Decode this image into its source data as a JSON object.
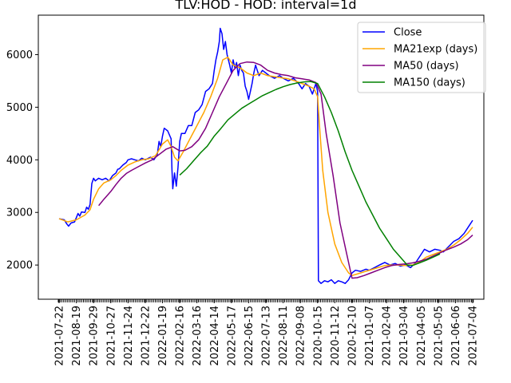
{
  "chart_data": {
    "type": "line",
    "title": "TLV:HOD - HOD: interval=1d",
    "xlabel": "",
    "ylabel": "",
    "ylim": [
      1350,
      6750
    ],
    "y_ticks": [
      2000,
      3000,
      4000,
      5000,
      6000
    ],
    "x_tick_labels": [
      "2021-07-22",
      "2021-08-19",
      "2021-09-29",
      "2021-10-27",
      "2021-11-24",
      "2021-12-22",
      "2022-01-19",
      "2022-02-16",
      "2022-03-16",
      "2022-04-14",
      "2022-05-17",
      "2022-06-15",
      "2022-07-13",
      "2022-08-11",
      "2022-09-08",
      "2020-10-15",
      "2020-11-12",
      "2020-12-10",
      "2021-01-07",
      "2021-02-04",
      "2021-03-04",
      "2021-04-05",
      "2021-05-05",
      "2021-06-06",
      "2021-07-04"
    ],
    "grid": false,
    "legend": {
      "placement": "top-right",
      "entries": [
        "Close",
        "MA21exp (days)",
        "MA50 (days)",
        "MA150 (days)"
      ]
    },
    "x_index_range": [
      0,
      24
    ],
    "series": [
      {
        "name": "Close",
        "color": "#0000ff",
        "points": [
          [
            0,
            2880
          ],
          [
            0.3,
            2860
          ],
          [
            0.45,
            2780
          ],
          [
            0.55,
            2740
          ],
          [
            0.7,
            2800
          ],
          [
            0.9,
            2820
          ],
          [
            1.0,
            2900
          ],
          [
            1.1,
            2980
          ],
          [
            1.2,
            2930
          ],
          [
            1.3,
            3010
          ],
          [
            1.5,
            3000
          ],
          [
            1.6,
            3100
          ],
          [
            1.7,
            3060
          ],
          [
            1.8,
            3150
          ],
          [
            1.85,
            3350
          ],
          [
            1.9,
            3550
          ],
          [
            2.0,
            3650
          ],
          [
            2.1,
            3600
          ],
          [
            2.3,
            3650
          ],
          [
            2.5,
            3620
          ],
          [
            2.7,
            3650
          ],
          [
            2.9,
            3600
          ],
          [
            3.0,
            3650
          ],
          [
            3.1,
            3700
          ],
          [
            3.3,
            3750
          ],
          [
            3.4,
            3820
          ],
          [
            3.5,
            3830
          ],
          [
            3.7,
            3900
          ],
          [
            3.9,
            3950
          ],
          [
            4.0,
            4000
          ],
          [
            4.2,
            4020
          ],
          [
            4.4,
            4000
          ],
          [
            4.6,
            3980
          ],
          [
            4.8,
            4030
          ],
          [
            5.0,
            4000
          ],
          [
            5.3,
            4050
          ],
          [
            5.5,
            4000
          ],
          [
            5.7,
            4100
          ],
          [
            5.8,
            4350
          ],
          [
            5.9,
            4250
          ],
          [
            6.0,
            4450
          ],
          [
            6.1,
            4600
          ],
          [
            6.3,
            4550
          ],
          [
            6.5,
            4400
          ],
          [
            6.55,
            3800
          ],
          [
            6.6,
            3450
          ],
          [
            6.7,
            3750
          ],
          [
            6.8,
            3500
          ],
          [
            6.9,
            3850
          ],
          [
            7.0,
            4350
          ],
          [
            7.1,
            4500
          ],
          [
            7.3,
            4500
          ],
          [
            7.5,
            4650
          ],
          [
            7.7,
            4650
          ],
          [
            7.9,
            4900
          ],
          [
            8.1,
            4950
          ],
          [
            8.3,
            5050
          ],
          [
            8.5,
            5300
          ],
          [
            8.7,
            5350
          ],
          [
            8.9,
            5450
          ],
          [
            9.0,
            5700
          ],
          [
            9.1,
            5900
          ],
          [
            9.2,
            6050
          ],
          [
            9.3,
            6250
          ],
          [
            9.35,
            6500
          ],
          [
            9.45,
            6400
          ],
          [
            9.55,
            6100
          ],
          [
            9.65,
            6250
          ],
          [
            9.75,
            6000
          ],
          [
            9.9,
            5800
          ],
          [
            10.0,
            5650
          ],
          [
            10.1,
            5900
          ],
          [
            10.2,
            5750
          ],
          [
            10.3,
            5850
          ],
          [
            10.4,
            5600
          ],
          [
            10.5,
            5800
          ],
          [
            10.6,
            5700
          ],
          [
            10.7,
            5650
          ],
          [
            10.8,
            5400
          ],
          [
            10.9,
            5300
          ],
          [
            11.0,
            5150
          ],
          [
            11.1,
            5300
          ],
          [
            11.2,
            5450
          ],
          [
            11.3,
            5650
          ],
          [
            11.4,
            5800
          ],
          [
            11.5,
            5700
          ],
          [
            11.6,
            5600
          ],
          [
            11.8,
            5700
          ],
          [
            12.0,
            5650
          ],
          [
            12.2,
            5600
          ],
          [
            12.5,
            5550
          ],
          [
            12.8,
            5600
          ],
          [
            13.0,
            5550
          ],
          [
            13.3,
            5500
          ],
          [
            13.6,
            5550
          ],
          [
            13.9,
            5450
          ],
          [
            14.1,
            5350
          ],
          [
            14.3,
            5450
          ],
          [
            14.5,
            5400
          ],
          [
            14.7,
            5250
          ],
          [
            14.9,
            5450
          ],
          [
            15.0,
            5300
          ],
          [
            15.05,
            1700
          ],
          [
            15.2,
            1650
          ],
          [
            15.4,
            1700
          ],
          [
            15.6,
            1680
          ],
          [
            15.8,
            1720
          ],
          [
            16.0,
            1650
          ],
          [
            16.2,
            1700
          ],
          [
            16.4,
            1680
          ],
          [
            16.6,
            1650
          ],
          [
            16.8,
            1720
          ],
          [
            17.0,
            1850
          ],
          [
            17.2,
            1900
          ],
          [
            17.5,
            1880
          ],
          [
            17.8,
            1920
          ],
          [
            18.0,
            1900
          ],
          [
            18.3,
            1950
          ],
          [
            18.6,
            2000
          ],
          [
            18.9,
            2050
          ],
          [
            19.2,
            2000
          ],
          [
            19.5,
            2030
          ],
          [
            19.8,
            1980
          ],
          [
            20.1,
            2000
          ],
          [
            20.4,
            1950
          ],
          [
            20.7,
            2050
          ],
          [
            21.0,
            2200
          ],
          [
            21.2,
            2300
          ],
          [
            21.5,
            2250
          ],
          [
            21.8,
            2300
          ],
          [
            22.1,
            2280
          ],
          [
            22.3,
            2250
          ],
          [
            22.6,
            2350
          ],
          [
            22.9,
            2450
          ],
          [
            23.2,
            2500
          ],
          [
            23.5,
            2600
          ],
          [
            23.8,
            2750
          ],
          [
            24.0,
            2850
          ]
        ]
      },
      {
        "name": "MA21exp (days)",
        "color": "#ffa500",
        "points": [
          [
            0,
            2880
          ],
          [
            0.5,
            2820
          ],
          [
            1.0,
            2860
          ],
          [
            1.5,
            2950
          ],
          [
            1.8,
            3050
          ],
          [
            2.0,
            3250
          ],
          [
            2.3,
            3450
          ],
          [
            2.6,
            3560
          ],
          [
            3.0,
            3620
          ],
          [
            3.3,
            3700
          ],
          [
            3.6,
            3800
          ],
          [
            4.0,
            3900
          ],
          [
            4.4,
            3960
          ],
          [
            4.8,
            4000
          ],
          [
            5.2,
            4020
          ],
          [
            5.6,
            4080
          ],
          [
            6.0,
            4300
          ],
          [
            6.3,
            4380
          ],
          [
            6.5,
            4250
          ],
          [
            6.7,
            4050
          ],
          [
            6.9,
            3980
          ],
          [
            7.2,
            4150
          ],
          [
            7.6,
            4400
          ],
          [
            8.0,
            4650
          ],
          [
            8.4,
            4900
          ],
          [
            8.8,
            5200
          ],
          [
            9.2,
            5550
          ],
          [
            9.5,
            5900
          ],
          [
            9.8,
            5950
          ],
          [
            10.1,
            5800
          ],
          [
            10.5,
            5750
          ],
          [
            10.9,
            5650
          ],
          [
            11.3,
            5600
          ],
          [
            11.7,
            5650
          ],
          [
            12.1,
            5600
          ],
          [
            12.5,
            5580
          ],
          [
            12.9,
            5560
          ],
          [
            13.3,
            5540
          ],
          [
            13.7,
            5500
          ],
          [
            14.1,
            5450
          ],
          [
            14.5,
            5400
          ],
          [
            14.8,
            5350
          ],
          [
            15.0,
            5200
          ],
          [
            15.1,
            4700
          ],
          [
            15.3,
            3800
          ],
          [
            15.6,
            3000
          ],
          [
            16.0,
            2400
          ],
          [
            16.4,
            2050
          ],
          [
            16.8,
            1850
          ],
          [
            17.0,
            1800
          ],
          [
            17.3,
            1830
          ],
          [
            17.7,
            1870
          ],
          [
            18.1,
            1910
          ],
          [
            18.5,
            1950
          ],
          [
            18.9,
            1990
          ],
          [
            19.3,
            2000
          ],
          [
            19.7,
            2000
          ],
          [
            20.1,
            1990
          ],
          [
            20.5,
            2000
          ],
          [
            20.9,
            2050
          ],
          [
            21.3,
            2150
          ],
          [
            21.7,
            2200
          ],
          [
            22.1,
            2250
          ],
          [
            22.5,
            2300
          ],
          [
            22.9,
            2380
          ],
          [
            23.3,
            2480
          ],
          [
            23.7,
            2600
          ],
          [
            24.0,
            2720
          ]
        ]
      },
      {
        "name": "MA50 (days)",
        "color": "#800080",
        "points": [
          [
            2.3,
            3130
          ],
          [
            2.6,
            3250
          ],
          [
            3.0,
            3400
          ],
          [
            3.3,
            3530
          ],
          [
            3.6,
            3650
          ],
          [
            3.9,
            3740
          ],
          [
            4.2,
            3800
          ],
          [
            4.6,
            3870
          ],
          [
            5.0,
            3940
          ],
          [
            5.4,
            4000
          ],
          [
            5.8,
            4100
          ],
          [
            6.2,
            4200
          ],
          [
            6.6,
            4250
          ],
          [
            7.0,
            4170
          ],
          [
            7.3,
            4180
          ],
          [
            7.7,
            4250
          ],
          [
            8.1,
            4380
          ],
          [
            8.5,
            4600
          ],
          [
            8.9,
            4900
          ],
          [
            9.3,
            5200
          ],
          [
            9.7,
            5450
          ],
          [
            10.1,
            5700
          ],
          [
            10.5,
            5830
          ],
          [
            10.9,
            5860
          ],
          [
            11.3,
            5850
          ],
          [
            11.7,
            5800
          ],
          [
            12.1,
            5700
          ],
          [
            12.5,
            5650
          ],
          [
            12.9,
            5620
          ],
          [
            13.3,
            5600
          ],
          [
            13.7,
            5560
          ],
          [
            14.1,
            5540
          ],
          [
            14.5,
            5520
          ],
          [
            14.9,
            5470
          ],
          [
            15.2,
            5250
          ],
          [
            15.5,
            4500
          ],
          [
            15.9,
            3700
          ],
          [
            16.3,
            2800
          ],
          [
            16.7,
            2200
          ],
          [
            17.0,
            1750
          ],
          [
            17.3,
            1760
          ],
          [
            17.7,
            1800
          ],
          [
            18.1,
            1850
          ],
          [
            18.5,
            1900
          ],
          [
            18.9,
            1950
          ],
          [
            19.3,
            1990
          ],
          [
            19.7,
            2010
          ],
          [
            20.1,
            2020
          ],
          [
            20.5,
            2040
          ],
          [
            20.9,
            2070
          ],
          [
            21.3,
            2110
          ],
          [
            21.7,
            2170
          ],
          [
            22.1,
            2230
          ],
          [
            22.5,
            2290
          ],
          [
            22.9,
            2340
          ],
          [
            23.3,
            2400
          ],
          [
            23.7,
            2480
          ],
          [
            24.0,
            2570
          ]
        ]
      },
      {
        "name": "MA150 (days)",
        "color": "#008000",
        "points": [
          [
            7.0,
            3710
          ],
          [
            7.4,
            3830
          ],
          [
            7.8,
            3980
          ],
          [
            8.2,
            4130
          ],
          [
            8.6,
            4260
          ],
          [
            9.0,
            4450
          ],
          [
            9.4,
            4600
          ],
          [
            9.8,
            4760
          ],
          [
            10.2,
            4870
          ],
          [
            10.6,
            4980
          ],
          [
            11.0,
            5060
          ],
          [
            11.4,
            5140
          ],
          [
            11.8,
            5220
          ],
          [
            12.2,
            5280
          ],
          [
            12.6,
            5340
          ],
          [
            13.0,
            5390
          ],
          [
            13.4,
            5430
          ],
          [
            13.8,
            5460
          ],
          [
            14.2,
            5480
          ],
          [
            14.6,
            5490
          ],
          [
            15.0,
            5450
          ],
          [
            15.4,
            5200
          ],
          [
            15.8,
            4900
          ],
          [
            16.2,
            4550
          ],
          [
            16.6,
            4150
          ],
          [
            17.0,
            3800
          ],
          [
            17.4,
            3500
          ],
          [
            17.8,
            3200
          ],
          [
            18.2,
            2950
          ],
          [
            18.6,
            2700
          ],
          [
            19.0,
            2500
          ],
          [
            19.4,
            2300
          ],
          [
            19.8,
            2150
          ],
          [
            20.2,
            2000
          ],
          [
            20.5,
            1990
          ],
          [
            20.9,
            2040
          ],
          [
            21.3,
            2090
          ],
          [
            21.7,
            2150
          ],
          [
            22.1,
            2210
          ]
        ]
      }
    ]
  }
}
